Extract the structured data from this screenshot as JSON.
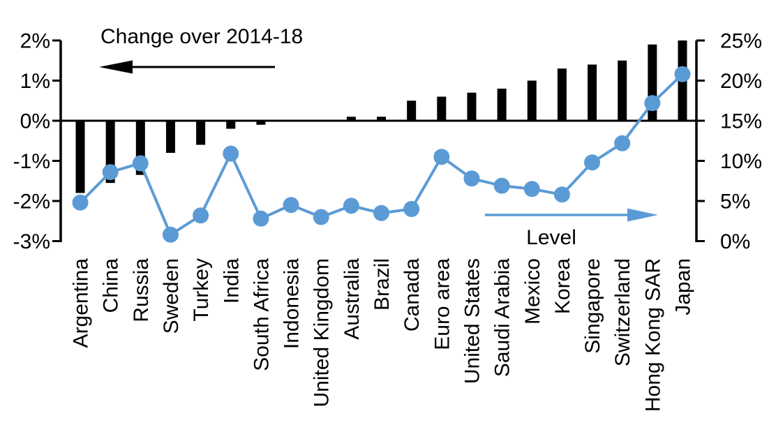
{
  "chart_data": {
    "type": "bar",
    "subtype": "dual-axis bar+line combo",
    "categories": [
      "Argentina",
      "China",
      "Russia",
      "Sweden",
      "Turkey",
      "India",
      "South Africa",
      "Indonesia",
      "United Kingdom",
      "Australia",
      "Brazil",
      "Canada",
      "Euro area",
      "United States",
      "Saudi Arabia",
      "Mexico",
      "Korea",
      "Singapore",
      "Switzerland",
      "Hong Kong SAR",
      "Japan"
    ],
    "series": [
      {
        "name": "Change over 2014-18",
        "type": "bar",
        "axis": "left",
        "color": "#000000",
        "values": [
          -1.8,
          -1.55,
          -1.35,
          -0.8,
          -0.6,
          -0.2,
          -0.1,
          0,
          0,
          0.1,
          0.1,
          0.5,
          0.6,
          0.7,
          0.8,
          1.0,
          1.3,
          1.4,
          1.5,
          1.9,
          2.0
        ]
      },
      {
        "name": "Level",
        "type": "line",
        "axis": "right",
        "color": "#5b9bd5",
        "values": [
          4.8,
          8.6,
          9.7,
          0.8,
          3.2,
          10.9,
          2.8,
          4.5,
          3.0,
          4.4,
          3.5,
          4.0,
          10.5,
          7.8,
          6.9,
          6.5,
          5.8,
          9.8,
          12.2,
          17.2,
          20.8
        ]
      }
    ],
    "left_axis": {
      "tick_labels": [
        "2%",
        "1%",
        "0%",
        "-1%",
        "-2%",
        "-3%"
      ],
      "tick_values": [
        2,
        1,
        0,
        -1,
        -2,
        -3
      ],
      "min": -3,
      "max": 2
    },
    "right_axis": {
      "tick_labels": [
        "25%",
        "20%",
        "15%",
        "10%",
        "5%",
        "0%"
      ],
      "tick_values": [
        25,
        20,
        15,
        10,
        5,
        0
      ],
      "min": 0,
      "max": 25
    },
    "grid": false,
    "legend_position": "in-plot text with arrows"
  },
  "annotations": {
    "bar_series_label": "Change over 2014-18",
    "bar_series_arrow_direction": "left",
    "line_series_label": "Level",
    "line_series_arrow_direction": "right"
  },
  "colors": {
    "line_accent": "#5b9bd5",
    "bar": "#000000",
    "text": "#000000",
    "background": "#ffffff"
  }
}
